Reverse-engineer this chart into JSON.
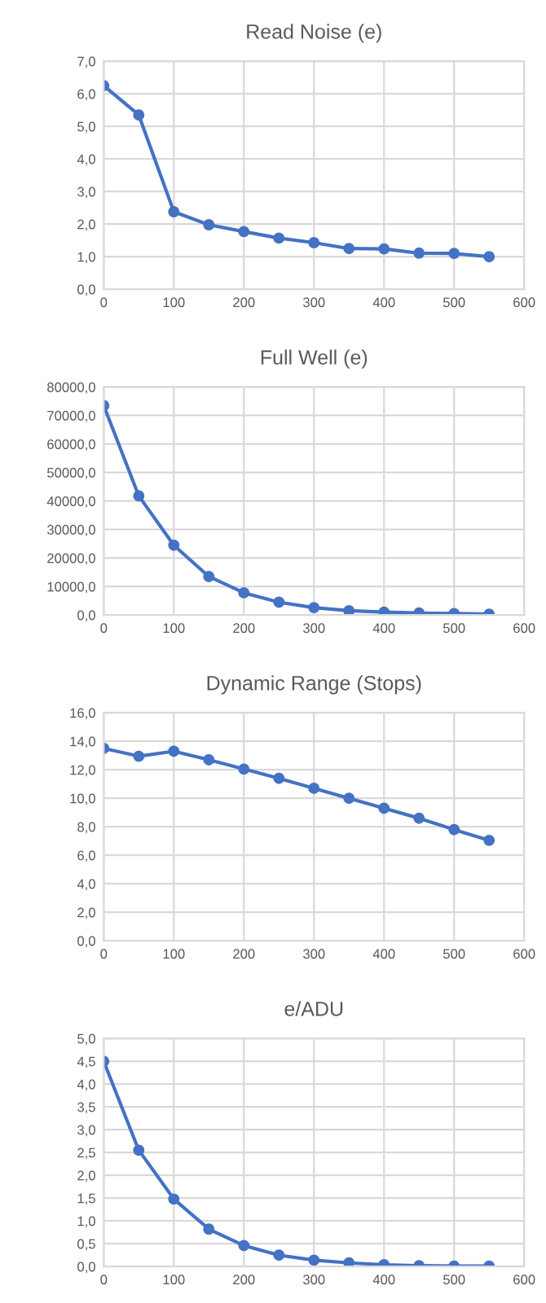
{
  "chart_data": [
    {
      "type": "line",
      "title": "Read Noise (e)",
      "x": [
        0,
        50,
        100,
        150,
        200,
        250,
        300,
        350,
        400,
        450,
        500,
        550
      ],
      "series": [
        {
          "color": "#4472c4",
          "values": [
            6.25,
            5.35,
            2.38,
            1.98,
            1.77,
            1.57,
            1.43,
            1.25,
            1.24,
            1.11,
            1.1,
            1.0
          ]
        }
      ],
      "xlim": [
        0,
        600
      ],
      "xticks": [
        0,
        100,
        200,
        300,
        400,
        500,
        600
      ],
      "ylim": [
        0,
        7
      ],
      "yticks": [
        {
          "value": 0,
          "label": "0,0"
        },
        {
          "value": 1,
          "label": "1,0"
        },
        {
          "value": 2,
          "label": "2,0"
        },
        {
          "value": 3,
          "label": "3,0"
        },
        {
          "value": 4,
          "label": "4,0"
        },
        {
          "value": 5,
          "label": "5,0"
        },
        {
          "value": 6,
          "label": "6,0"
        },
        {
          "value": 7,
          "label": "7,0"
        }
      ],
      "grid": true,
      "marker": "circle",
      "line_style": "solid",
      "legend": false
    },
    {
      "type": "line",
      "title": "Full Well (e)",
      "x": [
        0,
        50,
        100,
        150,
        200,
        250,
        300,
        350,
        400,
        450,
        500,
        550
      ],
      "series": [
        {
          "color": "#4472c4",
          "values": [
            73500,
            41800,
            24500,
            13500,
            7800,
            4500,
            2600,
            1500,
            1000,
            700,
            500,
            300
          ]
        }
      ],
      "xlim": [
        0,
        600
      ],
      "xticks": [
        0,
        100,
        200,
        300,
        400,
        500,
        600
      ],
      "ylim": [
        0,
        80000
      ],
      "yticks": [
        {
          "value": 0,
          "label": "0,0"
        },
        {
          "value": 10000,
          "label": "10000,0"
        },
        {
          "value": 20000,
          "label": "20000,0"
        },
        {
          "value": 30000,
          "label": "30000,0"
        },
        {
          "value": 40000,
          "label": "40000,0"
        },
        {
          "value": 50000,
          "label": "50000,0"
        },
        {
          "value": 60000,
          "label": "60000,0"
        },
        {
          "value": 70000,
          "label": "70000,0"
        },
        {
          "value": 80000,
          "label": "80000,0"
        }
      ],
      "grid": true,
      "marker": "circle",
      "line_style": "solid",
      "legend": false
    },
    {
      "type": "line",
      "title": "Dynamic Range (Stops)",
      "x": [
        0,
        50,
        100,
        150,
        200,
        250,
        300,
        350,
        400,
        450,
        500,
        550
      ],
      "series": [
        {
          "color": "#4472c4",
          "values": [
            13.5,
            12.95,
            13.3,
            12.7,
            12.05,
            11.4,
            10.7,
            10.0,
            9.3,
            8.6,
            7.8,
            7.05
          ]
        }
      ],
      "xlim": [
        0,
        600
      ],
      "xticks": [
        0,
        100,
        200,
        300,
        400,
        500,
        600
      ],
      "ylim": [
        0,
        16
      ],
      "yticks": [
        {
          "value": 0,
          "label": "0,0"
        },
        {
          "value": 2,
          "label": "2,0"
        },
        {
          "value": 4,
          "label": "4,0"
        },
        {
          "value": 6,
          "label": "6,0"
        },
        {
          "value": 8,
          "label": "8,0"
        },
        {
          "value": 10,
          "label": "10,0"
        },
        {
          "value": 12,
          "label": "12,0"
        },
        {
          "value": 14,
          "label": "14,0"
        },
        {
          "value": 16,
          "label": "16,0"
        }
      ],
      "grid": true,
      "marker": "circle",
      "line_style": "solid",
      "legend": false
    },
    {
      "type": "line",
      "title": "e/ADU",
      "x": [
        0,
        50,
        100,
        150,
        200,
        250,
        300,
        350,
        400,
        450,
        500,
        550
      ],
      "series": [
        {
          "color": "#4472c4",
          "values": [
            4.5,
            2.55,
            1.48,
            0.82,
            0.46,
            0.25,
            0.14,
            0.08,
            0.04,
            0.02,
            0.01,
            0.01
          ]
        }
      ],
      "xlim": [
        0,
        600
      ],
      "xticks": [
        0,
        100,
        200,
        300,
        400,
        500,
        600
      ],
      "ylim": [
        0,
        5
      ],
      "yticks": [
        {
          "value": 0,
          "label": "0,0"
        },
        {
          "value": 0.5,
          "label": "0,5"
        },
        {
          "value": 1,
          "label": "1,0"
        },
        {
          "value": 1.5,
          "label": "1,5"
        },
        {
          "value": 2,
          "label": "2,0"
        },
        {
          "value": 2.5,
          "label": "2,5"
        },
        {
          "value": 3,
          "label": "3,0"
        },
        {
          "value": 3.5,
          "label": "3,5"
        },
        {
          "value": 4,
          "label": "4,0"
        },
        {
          "value": 4.5,
          "label": "4,5"
        },
        {
          "value": 5,
          "label": "5,0"
        }
      ],
      "grid": true,
      "marker": "circle",
      "line_style": "solid",
      "legend": false
    }
  ]
}
